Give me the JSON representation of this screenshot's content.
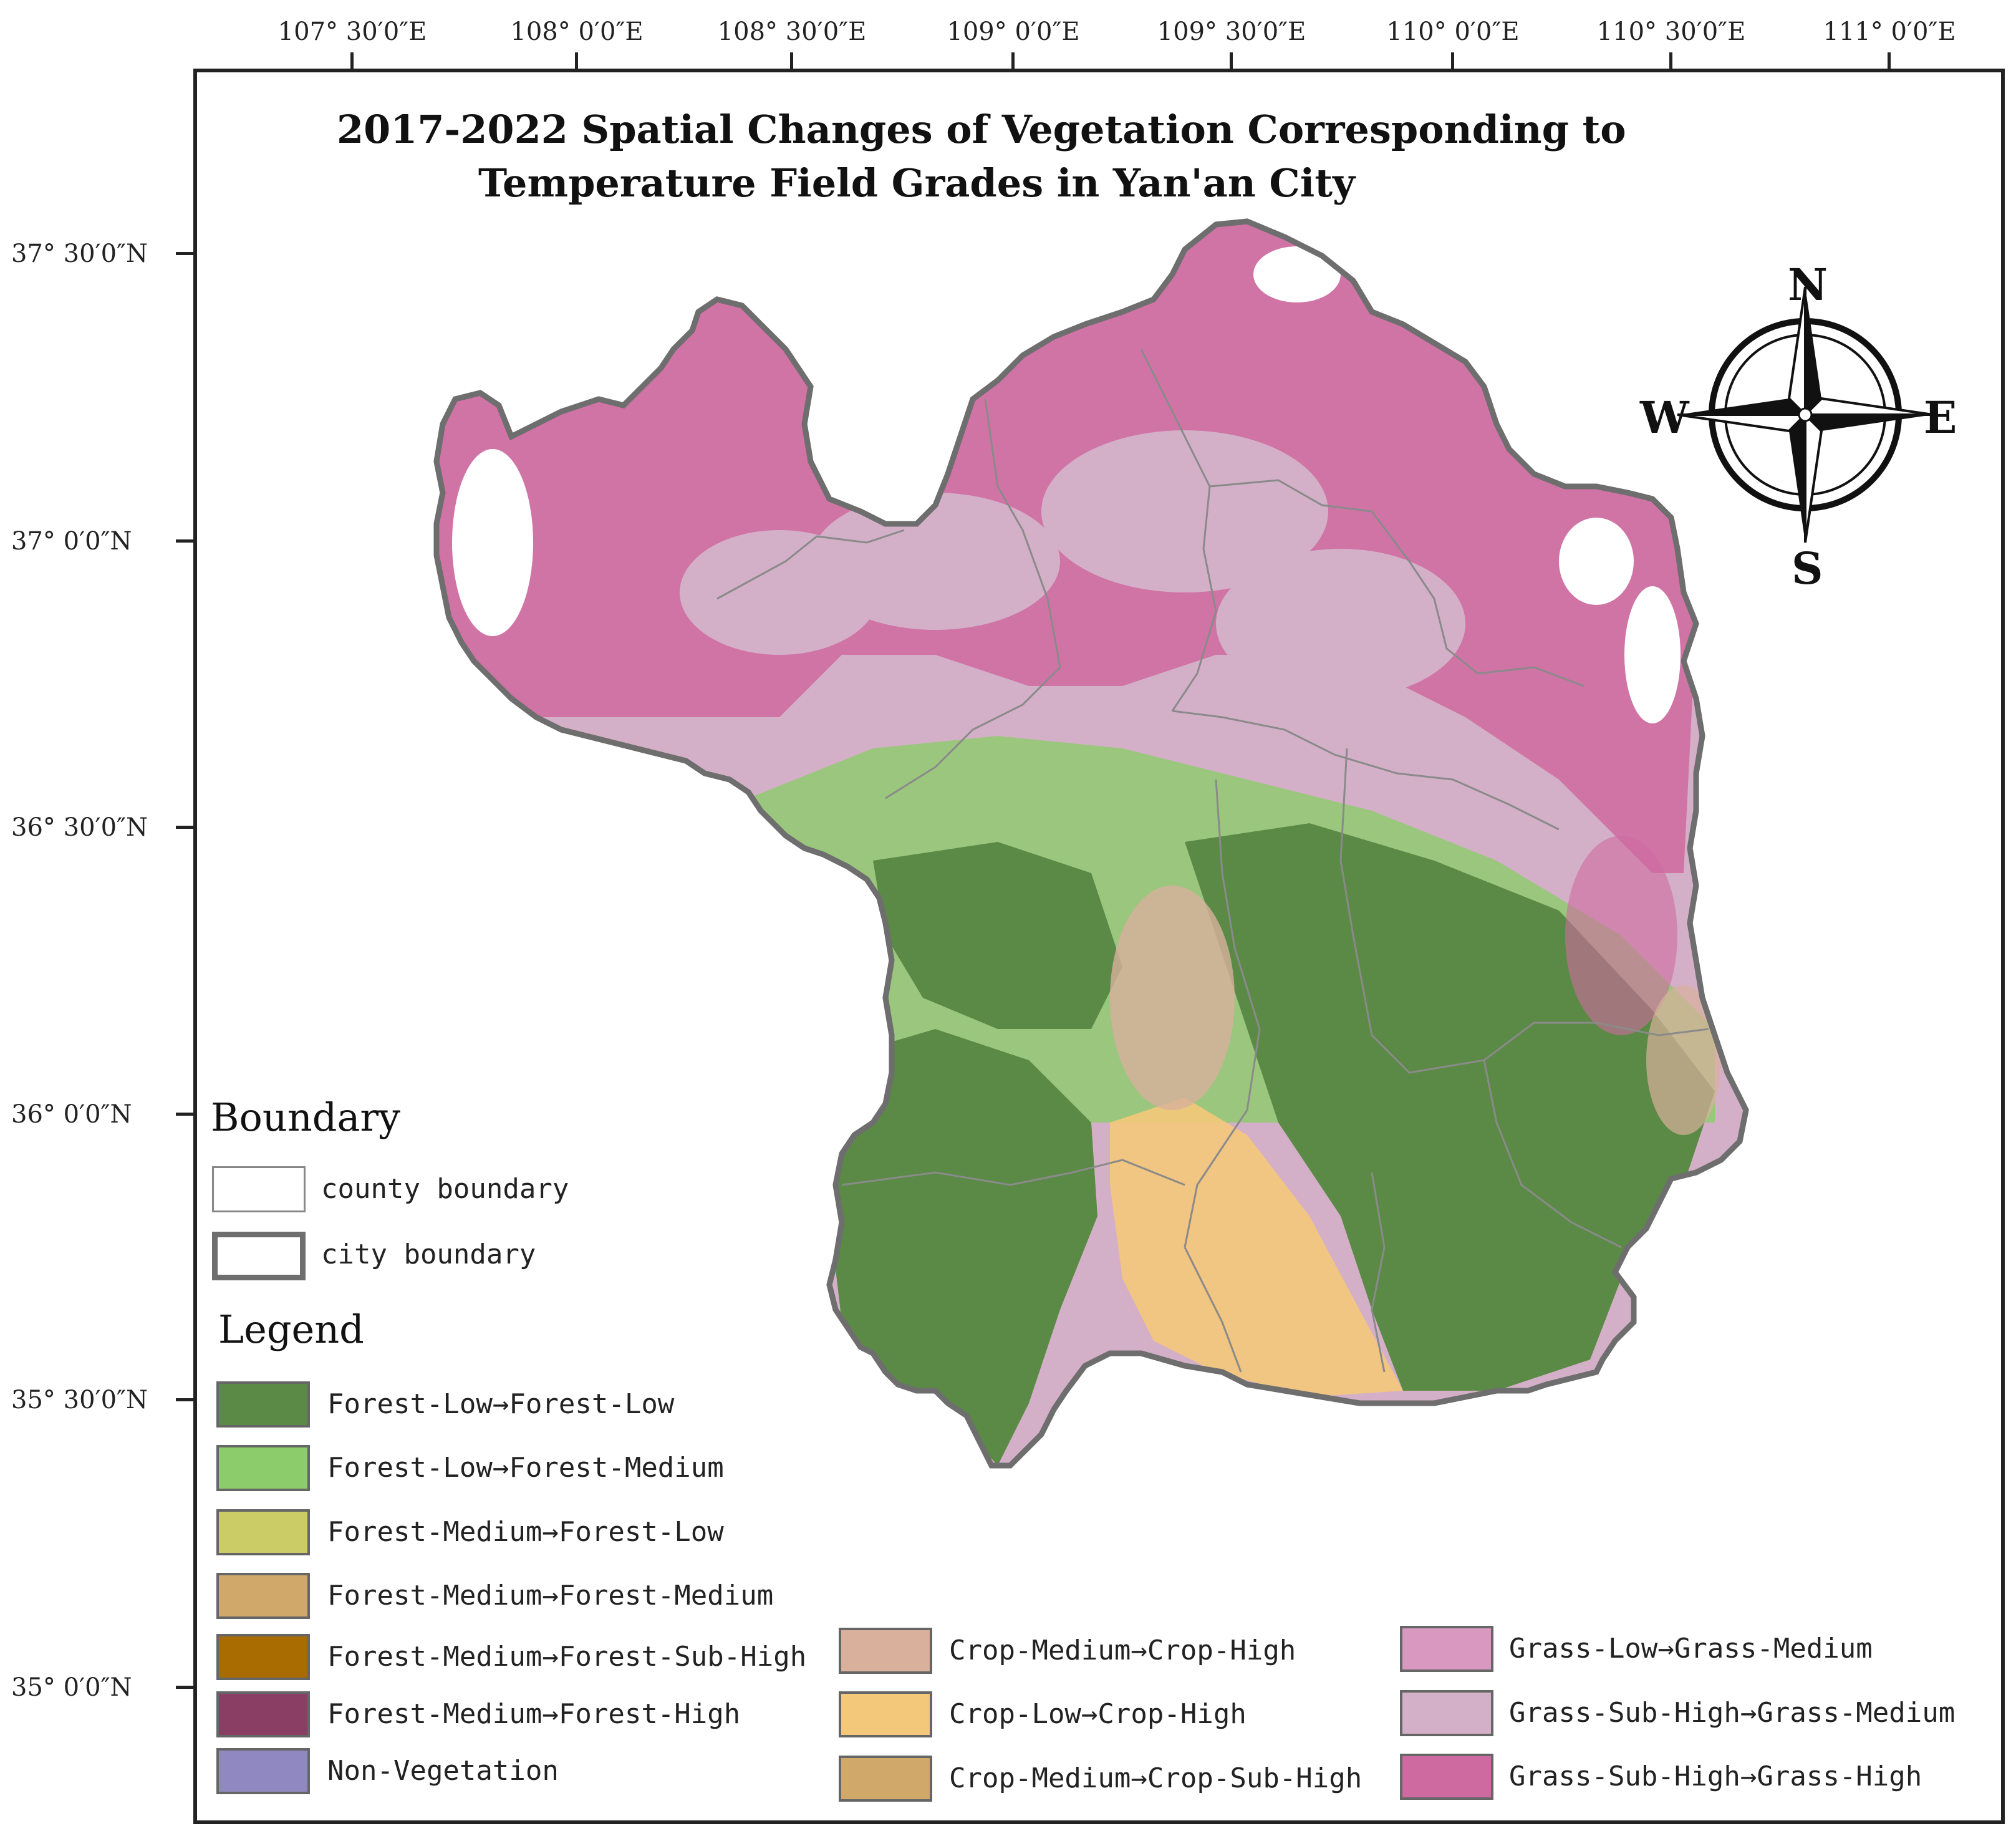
{
  "title": {
    "line1": "2017-2022 Spatial Changes of Vegetation Corresponding to",
    "line2": "Temperature Field Grades in Yan'an City"
  },
  "longitude_labels": [
    "107° 30′0″E",
    "108° 0′0″E",
    "108° 30′0″E",
    "109° 0′0″E",
    "109° 30′0″E",
    "110° 0′0″E",
    "110° 30′0″E",
    "111° 0′0″E"
  ],
  "latitude_labels": [
    "37° 30′0″N",
    "37° 0′0″N",
    "36° 30′0″N",
    "36° 0′0″N",
    "35° 30′0″N",
    "35° 0′0″N"
  ],
  "compass": {
    "north": "N",
    "south": "S",
    "east": "E",
    "west": "W"
  },
  "boundary_legend": {
    "heading": "Boundary",
    "county": "county boundary",
    "city": "city boundary"
  },
  "legend": {
    "heading": "Legend",
    "items": [
      {
        "label": "Forest-Low→Forest-Low",
        "color": "#5a8a45"
      },
      {
        "label": "Forest-Low→Forest-Medium",
        "color": "#8ccc6a"
      },
      {
        "label": "Forest-Medium→Forest-Low",
        "color": "#cccc66"
      },
      {
        "label": "Forest-Medium→Forest-Medium",
        "color": "#d0a96a"
      },
      {
        "label": "Forest-Medium→Forest-Sub-High",
        "color": "#a86c00"
      },
      {
        "label": "Forest-Medium→Forest-High",
        "color": "#8a3e64"
      },
      {
        "label": "Non-Vegetation",
        "color": "#9088c0"
      },
      {
        "label": "Crop-Medium→Crop-High",
        "color": "#d8b09c"
      },
      {
        "label": "Crop-Low→Crop-High",
        "color": "#f4c87a"
      },
      {
        "label": "Crop-Medium→Crop-Sub-High",
        "color": "#cfa86a"
      },
      {
        "label": "Grass-Low→Grass-Medium",
        "color": "#d898c0"
      },
      {
        "label": "Grass-Sub-High→Grass-Medium",
        "color": "#d4b0c8"
      },
      {
        "label": "Grass-Sub-High→Grass-High",
        "color": "#cf6aa0"
      }
    ]
  }
}
